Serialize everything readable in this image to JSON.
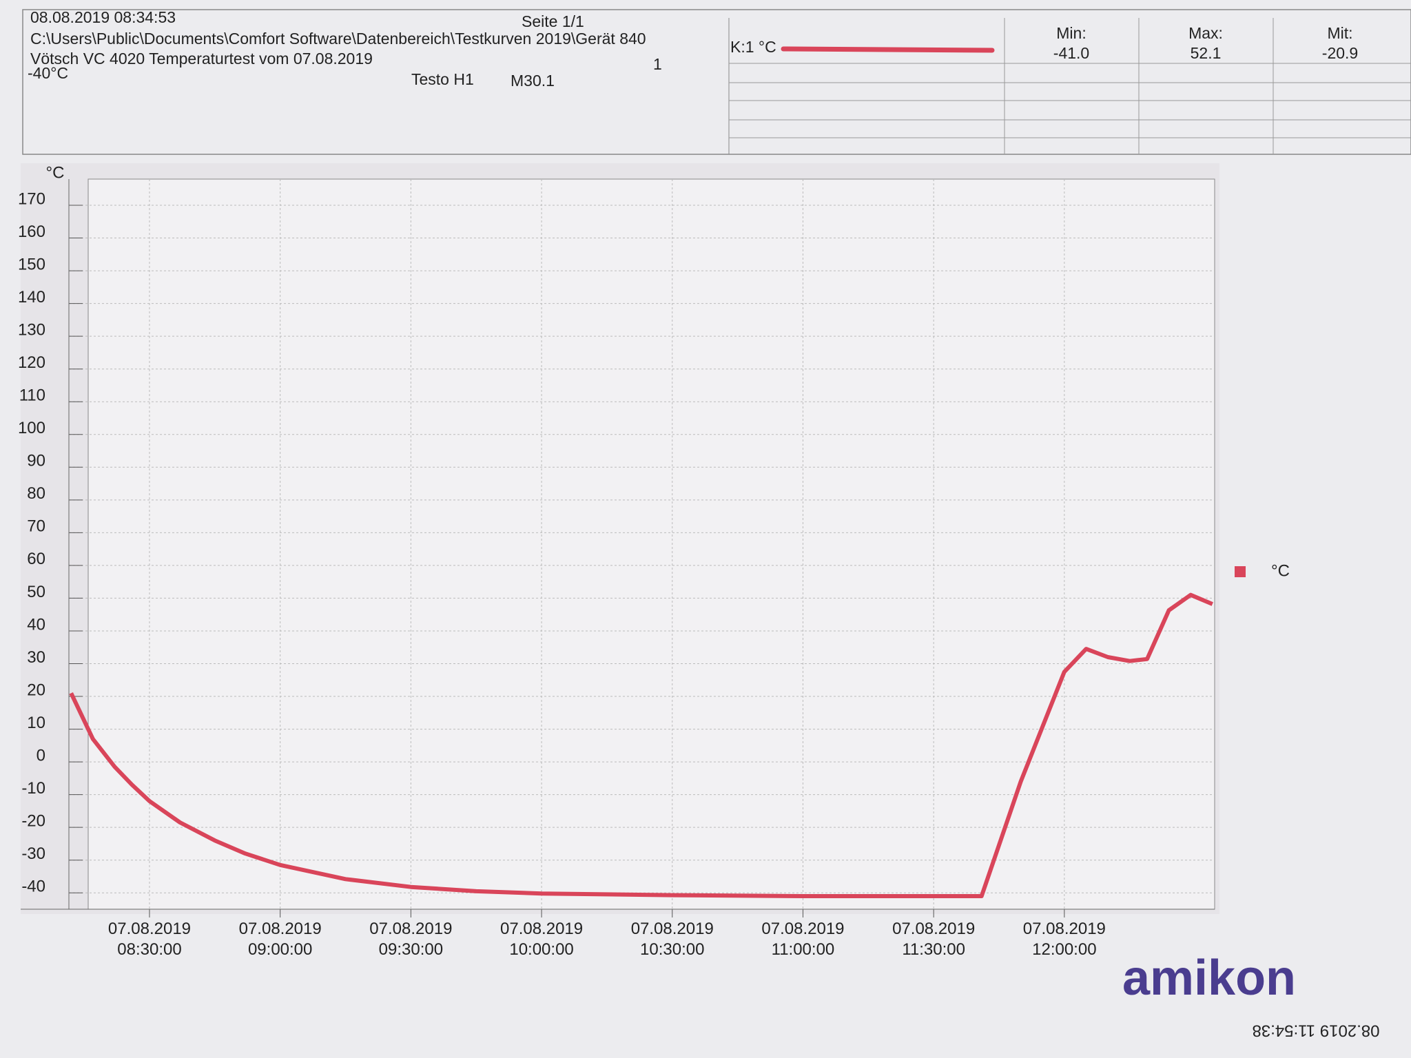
{
  "header": {
    "timestamp": "08.08.2019 08:34:53",
    "page": "Seite 1/1",
    "path": "C:\\Users\\Public\\Documents\\Comfort Software\\Datenbereich\\Testkurven 2019\\Gerät 840",
    "description": "Vötsch VC 4020 Temperaturtest vom 07.08.2019",
    "setpoint": "-40°C",
    "index": "1",
    "device": "Testo H1",
    "probe": "M30.1",
    "channel": "K:1 °C",
    "stats": [
      {
        "label": "Min:",
        "value": "-41.0"
      },
      {
        "label": "Max:",
        "value": "52.1"
      },
      {
        "label": "Mit:",
        "value": "-20.9"
      }
    ]
  },
  "watermark": "amikon",
  "footer": "08.2019 11:54:38",
  "chart_data": {
    "type": "line",
    "y_label": "°C",
    "x": [
      "07.08.2019 08:12:00",
      "07.08.2019 08:17:00",
      "07.08.2019 08:22:00",
      "07.08.2019 08:26:00",
      "07.08.2019 08:30:00",
      "07.08.2019 08:37:00",
      "07.08.2019 08:45:00",
      "07.08.2019 08:52:00",
      "07.08.2019 09:00:00",
      "07.08.2019 09:15:00",
      "07.08.2019 09:30:00",
      "07.08.2019 09:45:00",
      "07.08.2019 10:00:00",
      "07.08.2019 10:30:00",
      "07.08.2019 11:00:00",
      "07.08.2019 11:30:00",
      "07.08.2019 11:41:00",
      "07.08.2019 11:50:00",
      "07.08.2019 12:00:00",
      "07.08.2019 12:05:00",
      "07.08.2019 12:10:00",
      "07.08.2019 12:15:00",
      "07.08.2019 12:19:00",
      "07.08.2019 12:24:00",
      "07.08.2019 12:29:00",
      "07.08.2019 12:34:00"
    ],
    "series": [
      {
        "name": "°C",
        "color": "#d9455a",
        "values": [
          21,
          7,
          -1.5,
          -7,
          -12,
          -18.5,
          -24,
          -28,
          -31.5,
          -35.8,
          -38.2,
          -39.5,
          -40.2,
          -40.7,
          -41,
          -41,
          -41,
          -6,
          27.5,
          34.5,
          32,
          30.8,
          31.4,
          46.3,
          51,
          48.2
        ]
      }
    ],
    "xlim": [
      "07.08.2019 08:11:30",
      "07.08.2019 12:34:30"
    ],
    "xticks": [
      "07.08.2019 08:30:00",
      "07.08.2019 09:00:00",
      "07.08.2019 09:30:00",
      "07.08.2019 10:00:00",
      "07.08.2019 10:30:00",
      "07.08.2019 11:00:00",
      "07.08.2019 11:30:00",
      "07.08.2019 12:00:00"
    ],
    "ylim": [
      -45,
      178
    ],
    "yticks": [
      -40,
      -30,
      -20,
      -10,
      0,
      10,
      20,
      30,
      40,
      50,
      60,
      70,
      80,
      90,
      100,
      110,
      120,
      130,
      140,
      150,
      160,
      170
    ],
    "grid": true,
    "legend": "right"
  }
}
